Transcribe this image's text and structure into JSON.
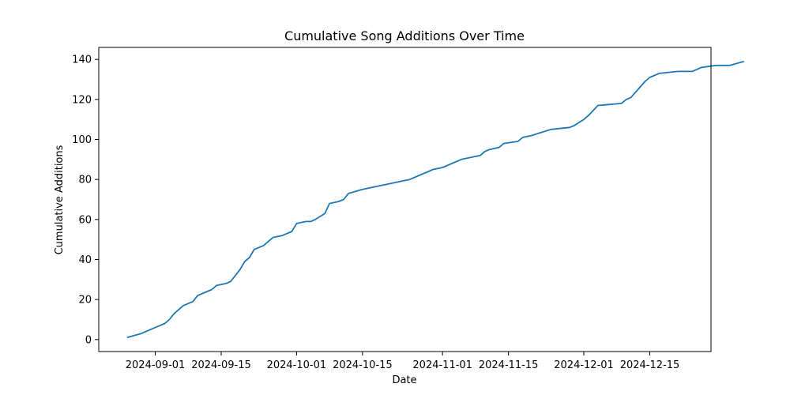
{
  "chart_data": {
    "type": "line",
    "title": "Cumulative Song Additions Over Time",
    "xlabel": "Date",
    "ylabel": "Cumulative Additions",
    "x_axis_type": "date",
    "xlim": [
      "2024-08-20",
      "2024-12-28"
    ],
    "ylim": [
      -6,
      146
    ],
    "x_ticks": [
      "2024-09-01",
      "2024-09-15",
      "2024-10-01",
      "2024-10-15",
      "2024-11-01",
      "2024-11-15",
      "2024-12-01",
      "2024-12-15"
    ],
    "y_ticks": [
      0,
      20,
      40,
      60,
      80,
      100,
      120,
      140
    ],
    "grid": false,
    "line_color": "#1f77b4",
    "series": [
      {
        "points": [
          [
            "2024-08-26",
            1
          ],
          [
            "2024-08-29",
            3
          ],
          [
            "2024-08-30",
            4
          ],
          [
            "2024-08-31",
            5
          ],
          [
            "2024-09-01",
            6
          ],
          [
            "2024-09-02",
            7
          ],
          [
            "2024-09-03",
            8
          ],
          [
            "2024-09-04",
            10
          ],
          [
            "2024-09-05",
            13
          ],
          [
            "2024-09-07",
            17
          ],
          [
            "2024-09-09",
            19
          ],
          [
            "2024-09-10",
            22
          ],
          [
            "2024-09-12",
            24
          ],
          [
            "2024-09-13",
            25
          ],
          [
            "2024-09-14",
            27
          ],
          [
            "2024-09-16",
            28
          ],
          [
            "2024-09-17",
            29
          ],
          [
            "2024-09-18",
            32
          ],
          [
            "2024-09-19",
            35
          ],
          [
            "2024-09-20",
            39
          ],
          [
            "2024-09-21",
            41
          ],
          [
            "2024-09-22",
            45
          ],
          [
            "2024-09-24",
            47
          ],
          [
            "2024-09-25",
            49
          ],
          [
            "2024-09-26",
            51
          ],
          [
            "2024-09-28",
            52
          ],
          [
            "2024-09-30",
            54
          ],
          [
            "2024-10-01",
            58
          ],
          [
            "2024-10-03",
            59
          ],
          [
            "2024-10-04",
            59
          ],
          [
            "2024-10-05",
            60
          ],
          [
            "2024-10-07",
            63
          ],
          [
            "2024-10-08",
            68
          ],
          [
            "2024-10-10",
            69
          ],
          [
            "2024-10-11",
            70
          ],
          [
            "2024-10-12",
            73
          ],
          [
            "2024-10-15",
            75
          ],
          [
            "2024-10-17",
            76
          ],
          [
            "2024-10-19",
            77
          ],
          [
            "2024-10-23",
            79
          ],
          [
            "2024-10-25",
            80
          ],
          [
            "2024-10-30",
            85
          ],
          [
            "2024-11-01",
            86
          ],
          [
            "2024-11-05",
            90
          ],
          [
            "2024-11-09",
            92
          ],
          [
            "2024-11-10",
            94
          ],
          [
            "2024-11-11",
            95
          ],
          [
            "2024-11-13",
            96
          ],
          [
            "2024-11-14",
            98
          ],
          [
            "2024-11-17",
            99
          ],
          [
            "2024-11-18",
            101
          ],
          [
            "2024-11-20",
            102
          ],
          [
            "2024-11-24",
            105
          ],
          [
            "2024-11-28",
            106
          ],
          [
            "2024-11-29",
            107
          ],
          [
            "2024-12-01",
            110
          ],
          [
            "2024-12-02",
            112
          ],
          [
            "2024-12-04",
            117
          ],
          [
            "2024-12-09",
            118
          ],
          [
            "2024-12-10",
            120
          ],
          [
            "2024-12-11",
            121
          ],
          [
            "2024-12-14",
            129
          ],
          [
            "2024-12-15",
            131
          ],
          [
            "2024-12-17",
            133
          ],
          [
            "2024-12-21",
            134
          ],
          [
            "2024-12-24",
            134
          ],
          [
            "2024-12-26",
            136
          ],
          [
            "2024-12-29",
            137
          ],
          [
            "2025-01-01",
            137
          ],
          [
            "2025-01-04",
            139
          ]
        ]
      }
    ]
  }
}
